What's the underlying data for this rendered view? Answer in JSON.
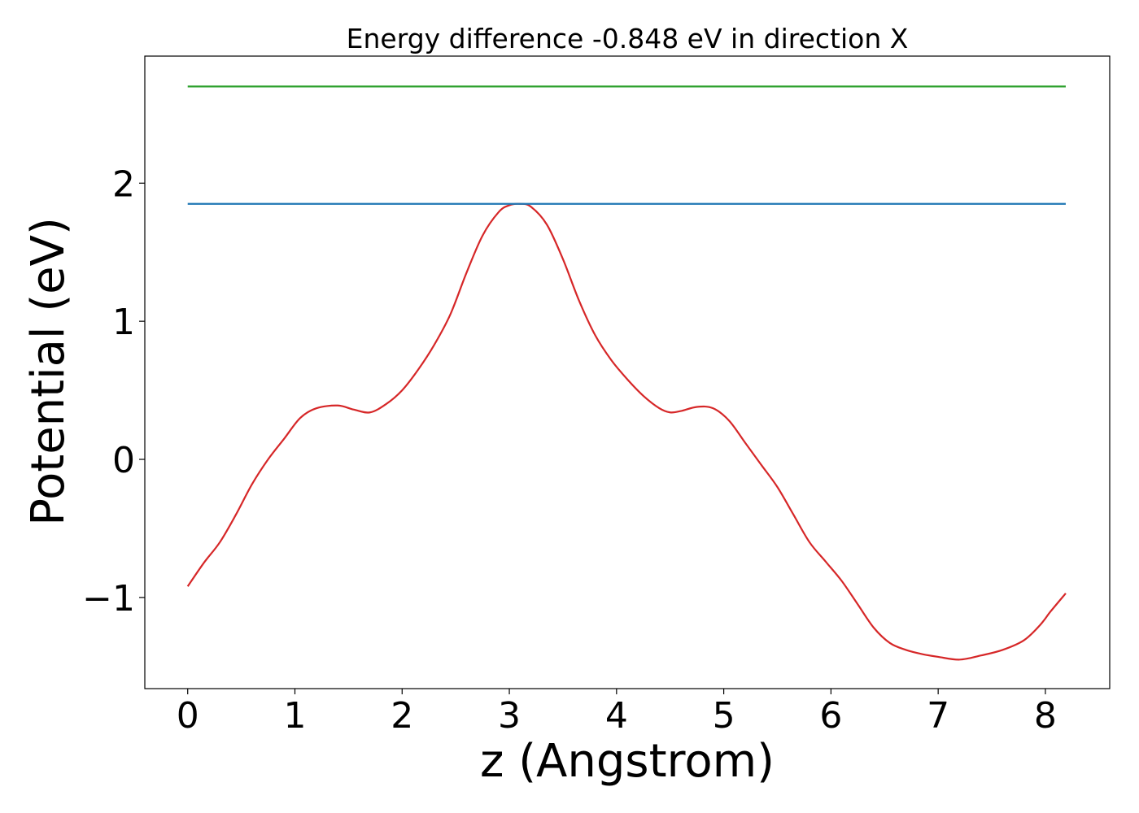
{
  "chart_data": {
    "type": "line",
    "title": "Energy difference -0.848 eV in direction X",
    "xlabel": "z (Angstrom)",
    "ylabel": "Potential (eV)",
    "xlim": [
      -0.4,
      8.6
    ],
    "ylim": [
      -1.66,
      2.92
    ],
    "xticks": [
      0,
      1,
      2,
      3,
      4,
      5,
      6,
      7,
      8
    ],
    "xtick_labels": [
      "0",
      "1",
      "2",
      "3",
      "4",
      "5",
      "6",
      "7",
      "8"
    ],
    "yticks": [
      -1,
      0,
      1,
      2
    ],
    "ytick_labels": [
      "−1",
      "0",
      "1",
      "2"
    ],
    "grid": false,
    "series": [
      {
        "color": "#d62728",
        "x": [
          0,
          0.15,
          0.3,
          0.45,
          0.6,
          0.75,
          0.9,
          1.05,
          1.2,
          1.4,
          1.55,
          1.7,
          1.85,
          2.0,
          2.15,
          2.3,
          2.45,
          2.6,
          2.75,
          2.9,
          3.0,
          3.1,
          3.2,
          3.35,
          3.5,
          3.65,
          3.8,
          3.95,
          4.1,
          4.25,
          4.4,
          4.5,
          4.6,
          4.75,
          4.9,
          5.05,
          5.2,
          5.35,
          5.5,
          5.65,
          5.8,
          5.95,
          6.1,
          6.25,
          6.4,
          6.55,
          6.7,
          6.85,
          7.0,
          7.2,
          7.4,
          7.6,
          7.8,
          7.95,
          8.05,
          8.19
        ],
        "y": [
          -0.92,
          -0.75,
          -0.6,
          -0.4,
          -0.18,
          0.0,
          0.15,
          0.3,
          0.37,
          0.39,
          0.36,
          0.34,
          0.4,
          0.5,
          0.65,
          0.83,
          1.05,
          1.35,
          1.62,
          1.79,
          1.84,
          1.85,
          1.83,
          1.7,
          1.45,
          1.15,
          0.9,
          0.72,
          0.58,
          0.46,
          0.37,
          0.34,
          0.35,
          0.38,
          0.37,
          0.28,
          0.12,
          -0.04,
          -0.2,
          -0.4,
          -0.6,
          -0.74,
          -0.88,
          -1.05,
          -1.22,
          -1.33,
          -1.38,
          -1.41,
          -1.43,
          -1.45,
          -1.42,
          -1.38,
          -1.31,
          -1.2,
          -1.1,
          -0.97
        ]
      },
      {
        "color": "#1f77b4",
        "x": [
          0,
          8.19
        ],
        "y": [
          1.85,
          1.85
        ]
      },
      {
        "color": "#2ca02c",
        "x": [
          0,
          8.19
        ],
        "y": [
          2.7,
          2.7
        ]
      }
    ]
  }
}
